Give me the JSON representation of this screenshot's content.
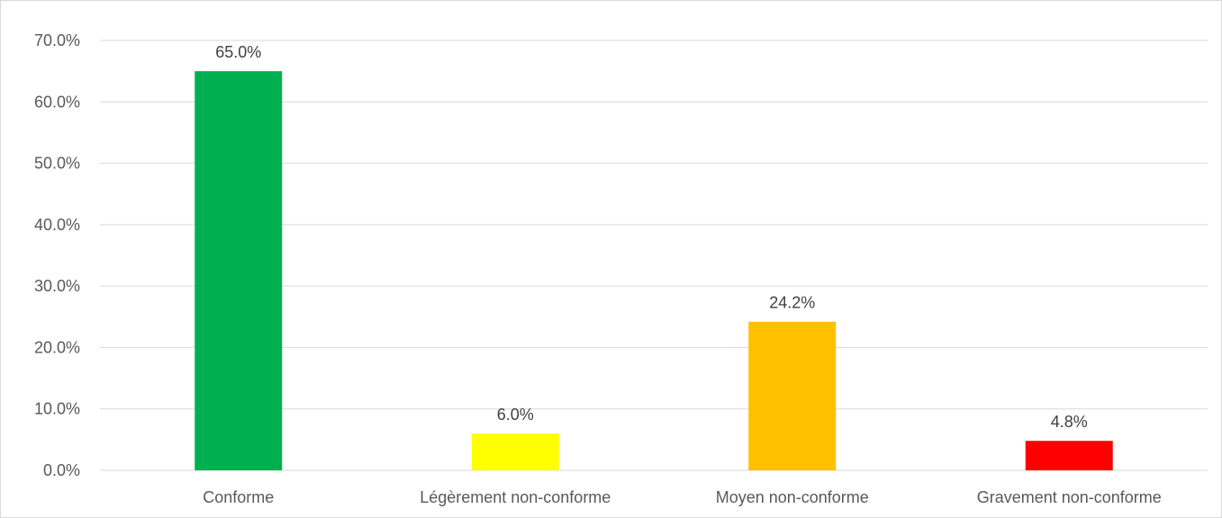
{
  "chart_data": {
    "type": "bar",
    "categories": [
      "Conforme",
      "Légèrement non-conforme",
      "Moyen non-conforme",
      "Gravement non-conforme"
    ],
    "values": [
      65.0,
      6.0,
      24.2,
      4.8
    ],
    "data_labels": [
      "65.0%",
      "6.0%",
      "24.2%",
      "4.8%"
    ],
    "colors": [
      "#00b050",
      "#ffff00",
      "#ffc000",
      "#ff0000"
    ],
    "title": "",
    "xlabel": "",
    "ylabel": "",
    "ylim": [
      0,
      70
    ],
    "yticks": [
      0,
      10,
      20,
      30,
      40,
      50,
      60,
      70
    ],
    "ytick_labels": [
      "0.0%",
      "10.0%",
      "20.0%",
      "30.0%",
      "40.0%",
      "50.0%",
      "60.0%",
      "70.0%"
    ],
    "grid": true,
    "legend": "none"
  }
}
